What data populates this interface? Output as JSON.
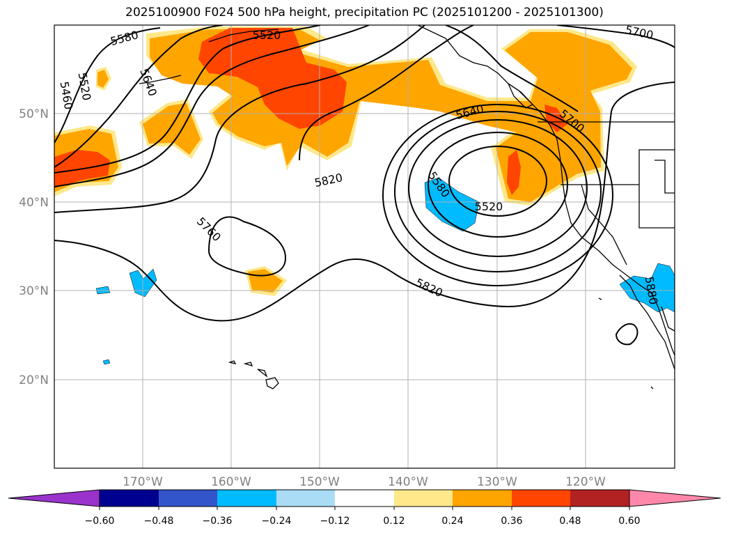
{
  "title": "2025100900 F024 500 hPa height, precipitation PC (2025101200 - 2025101300)",
  "map": {
    "lat_labels": [
      "50°N",
      "40°N",
      "30°N",
      "20°N"
    ],
    "lon_labels": [
      "170°W",
      "160°W",
      "150°W",
      "140°W",
      "130°W",
      "120°W"
    ],
    "contour_labels": [
      "5580",
      "5520",
      "5460",
      "5520",
      "5640",
      "5700",
      "5640",
      "5700",
      "5820",
      "5760",
      "5580",
      "5520",
      "5820",
      "5880"
    ]
  },
  "colorbar": {
    "ticks": [
      "−0.60",
      "−0.48",
      "−0.36",
      "−0.24",
      "−0.12",
      "0.12",
      "0.24",
      "0.36",
      "0.48",
      "0.60"
    ],
    "colors": [
      "#9933cc",
      "#000090",
      "#3355cc",
      "#00bbff",
      "#aaddf5",
      "#ffffff",
      "#ffe88a",
      "#ffa500",
      "#ff4500",
      "#b22222",
      "#ff88aa",
      "#ff88aa"
    ]
  },
  "colors": {
    "land_outline": "#000000",
    "contour": "#000000",
    "grid": "#b0b0b0",
    "precip_light": "#ffe88a",
    "precip_mid": "#ffa500",
    "precip_high": "#ff4500",
    "precip_neg": "#00bbff"
  }
}
